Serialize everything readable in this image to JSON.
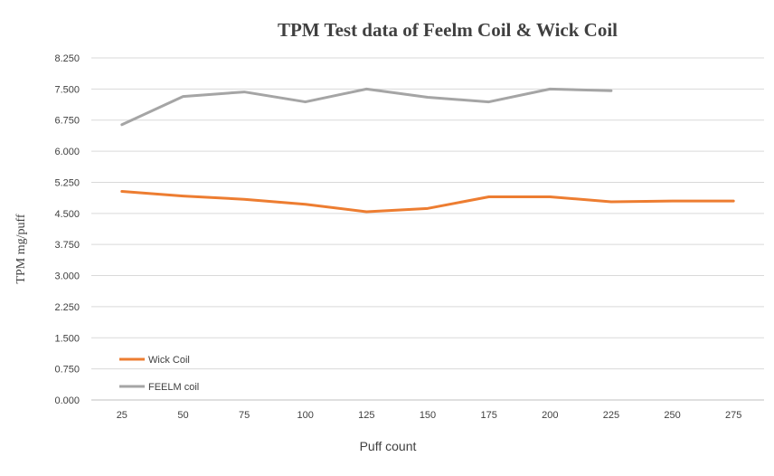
{
  "chart_data": {
    "type": "line",
    "title": "TPM Test data of Feelm Coil & Wick Coil",
    "xlabel": "Puff count",
    "ylabel": "TPM mg/puff",
    "categories": [
      "25",
      "50",
      "75",
      "100",
      "125",
      "150",
      "175",
      "200",
      "225",
      "250",
      "275"
    ],
    "y_ticks": [
      "0.000",
      "0.750",
      "1.500",
      "2.250",
      "3.000",
      "3.750",
      "4.500",
      "5.250",
      "6.000",
      "6.750",
      "7.500",
      "8.250"
    ],
    "ylim": [
      0,
      8.25
    ],
    "grid": true,
    "legend_position": "bottom-left",
    "series": [
      {
        "name": "Wick Coil",
        "color": "#ED7D31",
        "values": [
          5.03,
          4.92,
          4.84,
          4.72,
          4.54,
          4.62,
          4.9,
          4.9,
          4.78,
          4.8,
          4.8
        ]
      },
      {
        "name": "FEELM coil",
        "color": "#A5A5A5",
        "values": [
          6.64,
          7.32,
          7.43,
          7.19,
          7.5,
          7.3,
          7.19,
          7.5,
          7.46,
          null,
          null
        ]
      }
    ]
  }
}
